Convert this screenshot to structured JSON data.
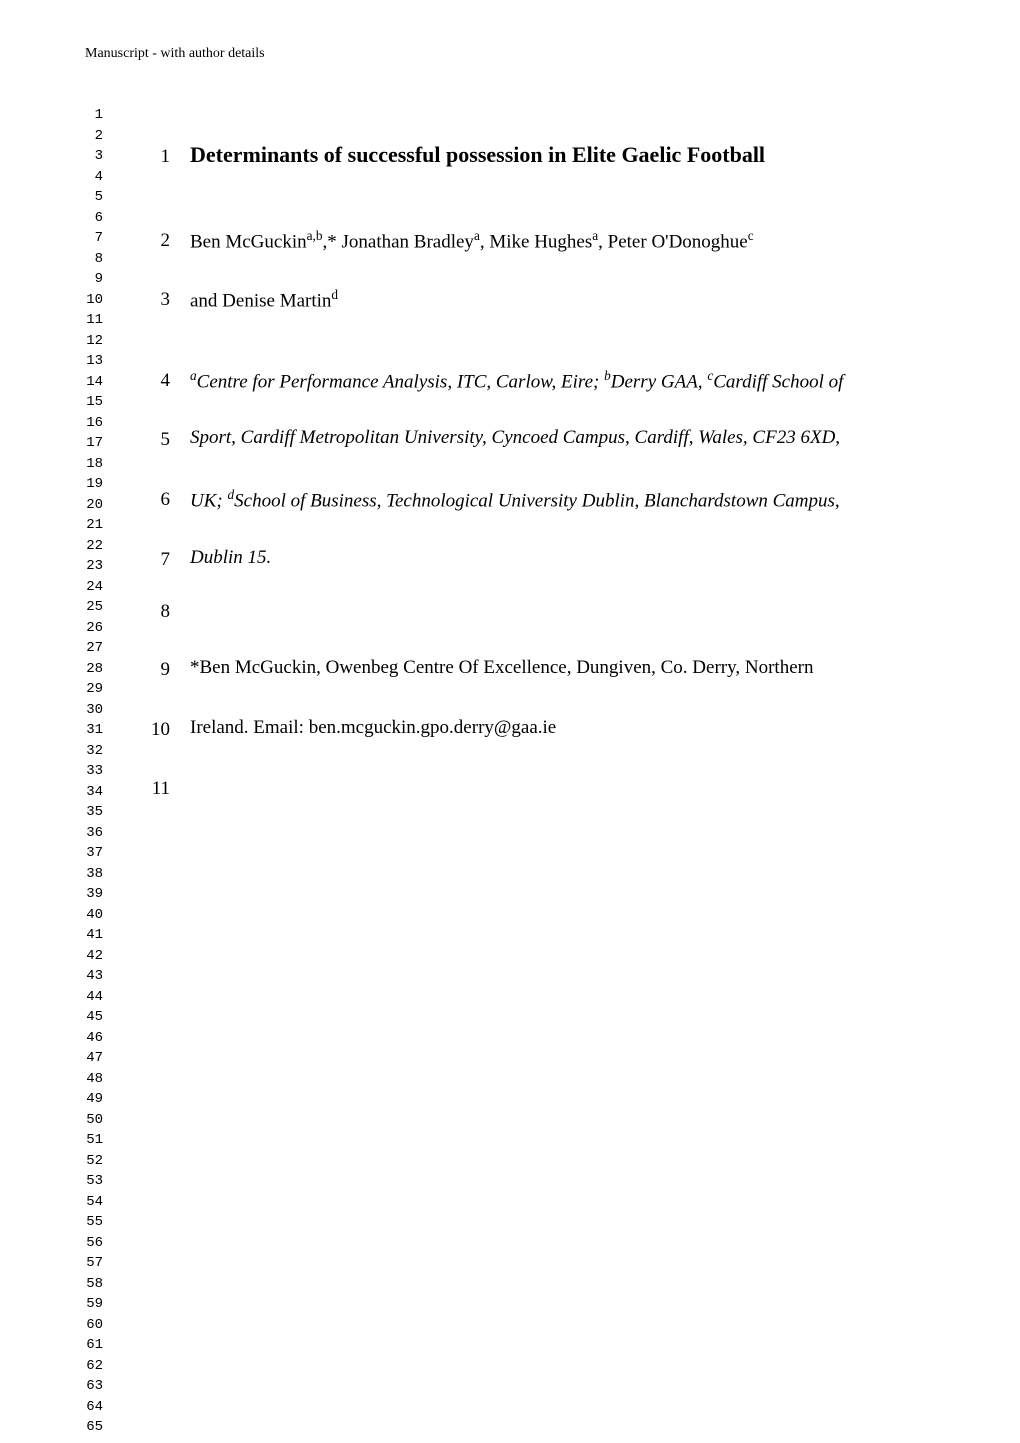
{
  "header": "Manuscript - with author details",
  "left_line_numbers": [
    "1",
    "2",
    "3",
    "4",
    "5",
    "6",
    "7",
    "8",
    "9",
    "10",
    "11",
    "12",
    "13",
    "14",
    "15",
    "16",
    "17",
    "18",
    "19",
    "20",
    "21",
    "22",
    "23",
    "24",
    "25",
    "26",
    "27",
    "28",
    "29",
    "30",
    "31",
    "32",
    "33",
    "34",
    "35",
    "36",
    "37",
    "38",
    "39",
    "40",
    "41",
    "42",
    "43",
    "44",
    "45",
    "46",
    "47",
    "48",
    "49",
    "50",
    "51",
    "52",
    "53",
    "54",
    "55",
    "56",
    "57",
    "58",
    "59",
    "60",
    "61",
    "62",
    "63",
    "64",
    "65"
  ],
  "title_num": "1",
  "title_text": "Determinants of successful possession in Elite Gaelic Football",
  "line2_num": "2",
  "line2_before": "Ben McGuckin",
  "line2_sup1": "a,b",
  "line2_mid1": ",* Jonathan Bradley",
  "line2_sup2": "a",
  "line2_mid2": ", Mike Hughes",
  "line2_sup3": "a",
  "line2_mid3": ",  Peter O'Donoghue",
  "line2_sup4": "c",
  "line3_num": "3",
  "line3_before": "and Denise Martin",
  "line3_sup": "d",
  "line4_num": "4",
  "line4_sup1": "a",
  "line4_part1": "Centre for Performance Analysis, ITC, Carlow, Eire; ",
  "line4_sup2": "b",
  "line4_part2": "Derry GAA, ",
  "line4_sup3": "c",
  "line4_part3": "Cardiff School of",
  "line5_num": "5",
  "line5_text": "Sport, Cardiff Metropolitan University, Cyncoed Campus, Cardiff, Wales, CF23 6XD,",
  "line6_num": "6",
  "line6_before": "UK; ",
  "line6_sup": "d",
  "line6_after": "School of Business, Technological University Dublin, Blanchardstown Campus,",
  "line7_num": "7",
  "line7_text": "Dublin 15.",
  "line8_num": "8",
  "line9_num": "9",
  "line9_text": "*Ben McGuckin, Owenbeg Centre Of Excellence, Dungiven, Co. Derry, Northern",
  "line10_num": "10",
  "line10_text": "Ireland. Email: ben.mcguckin.gpo.derry@gaa.ie",
  "line11_num": "11",
  "layout": {
    "row_tops": {
      "r1": 146,
      "r2": 230,
      "r3": 289,
      "r4": 370,
      "r5": 429,
      "r6": 489,
      "r7": 549,
      "r8": 601,
      "r9": 659,
      "r10": 719,
      "r11": 778
    },
    "font_sizes": {
      "body": 19,
      "title": 22,
      "left_numbers": 14,
      "header": 14
    },
    "colors": {
      "text": "#000000",
      "background": "#ffffff"
    }
  }
}
